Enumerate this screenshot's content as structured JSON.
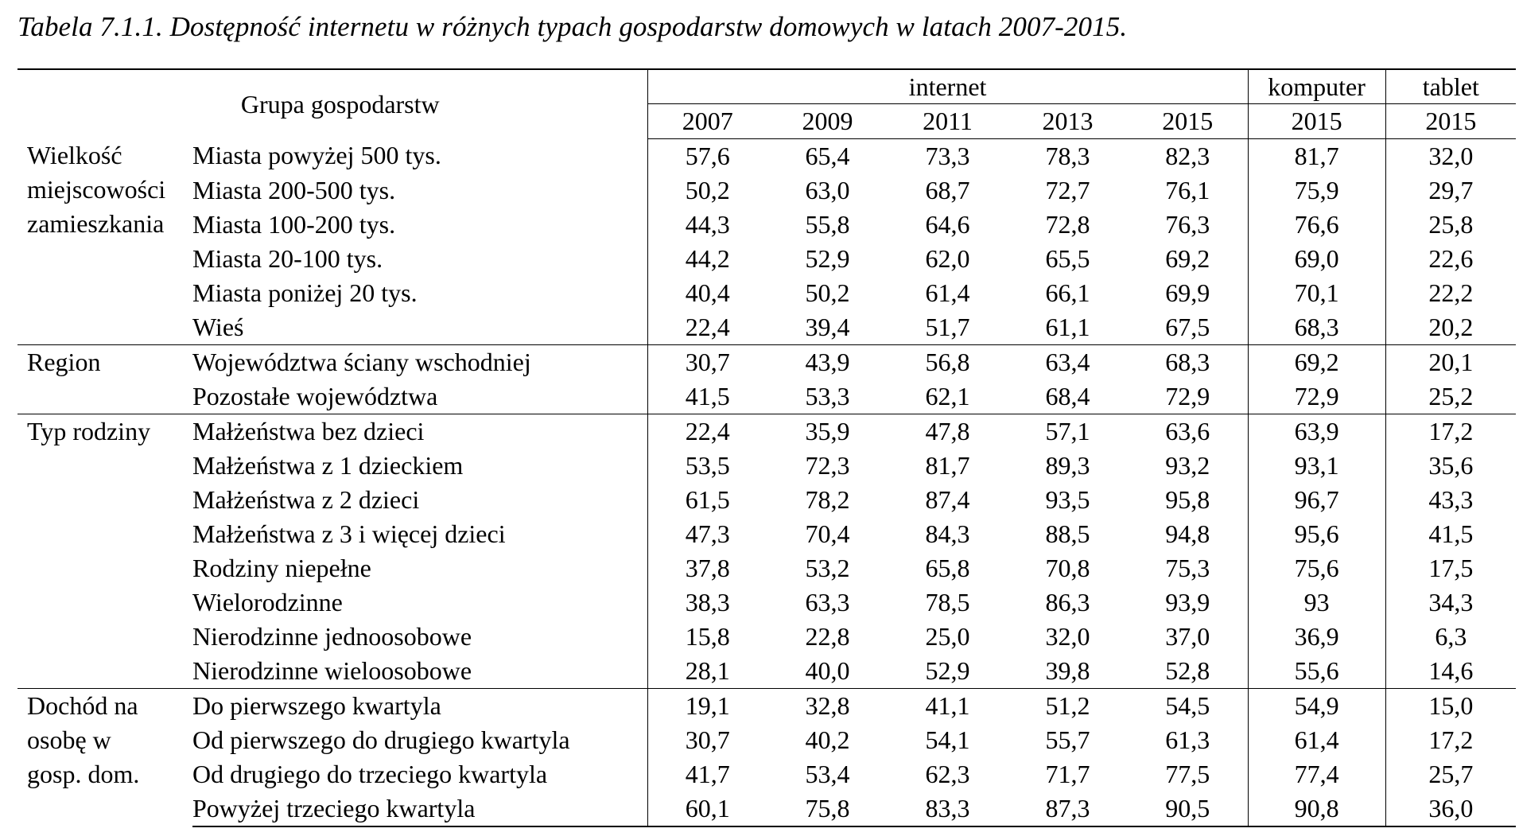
{
  "caption": "Tabela 7.1.1. Dostępność internetu w różnych typach gospodarstw domowych w latach 2007-2015.",
  "header": {
    "group_label": "Grupa gospodarstw",
    "internet_label": "internet",
    "komputer_label": "komputer",
    "tablet_label": "tablet",
    "years": [
      "2007",
      "2009",
      "2011",
      "2013",
      "2015",
      "2015",
      "2015"
    ]
  },
  "groups": [
    {
      "label_lines": [
        "Wielkość",
        "miejscowości",
        "zamieszkania"
      ],
      "rows": [
        {
          "label": "Miasta powyżej 500 tys.",
          "values": [
            "57,6",
            "65,4",
            "73,3",
            "78,3",
            "82,3",
            "81,7",
            "32,0"
          ]
        },
        {
          "label": "Miasta 200-500 tys.",
          "values": [
            "50,2",
            "63,0",
            "68,7",
            "72,7",
            "76,1",
            "75,9",
            "29,7"
          ]
        },
        {
          "label": "Miasta 100-200 tys.",
          "values": [
            "44,3",
            "55,8",
            "64,6",
            "72,8",
            "76,3",
            "76,6",
            "25,8"
          ]
        },
        {
          "label": "Miasta 20-100 tys.",
          "values": [
            "44,2",
            "52,9",
            "62,0",
            "65,5",
            "69,2",
            "69,0",
            "22,6"
          ]
        },
        {
          "label": "Miasta poniżej 20 tys.",
          "values": [
            "40,4",
            "50,2",
            "61,4",
            "66,1",
            "69,9",
            "70,1",
            "22,2"
          ]
        },
        {
          "label": "Wieś",
          "values": [
            "22,4",
            "39,4",
            "51,7",
            "61,1",
            "67,5",
            "68,3",
            "20,2"
          ]
        }
      ]
    },
    {
      "label_lines": [
        "Region"
      ],
      "rows": [
        {
          "label": "Województwa ściany wschodniej",
          "values": [
            "30,7",
            "43,9",
            "56,8",
            "63,4",
            "68,3",
            "69,2",
            "20,1"
          ]
        },
        {
          "label": "Pozostałe województwa",
          "values": [
            "41,5",
            "53,3",
            "62,1",
            "68,4",
            "72,9",
            "72,9",
            "25,2"
          ]
        }
      ]
    },
    {
      "label_lines": [
        "Typ rodziny"
      ],
      "rows": [
        {
          "label": "Małżeństwa bez dzieci",
          "values": [
            "22,4",
            "35,9",
            "47,8",
            "57,1",
            "63,6",
            "63,9",
            "17,2"
          ]
        },
        {
          "label": "Małżeństwa z 1 dzieckiem",
          "values": [
            "53,5",
            "72,3",
            "81,7",
            "89,3",
            "93,2",
            "93,1",
            "35,6"
          ]
        },
        {
          "label": "Małżeństwa z 2 dzieci",
          "values": [
            "61,5",
            "78,2",
            "87,4",
            "93,5",
            "95,8",
            "96,7",
            "43,3"
          ]
        },
        {
          "label": "Małżeństwa z 3 i więcej dzieci",
          "values": [
            "47,3",
            "70,4",
            "84,3",
            "88,5",
            "94,8",
            "95,6",
            "41,5"
          ]
        },
        {
          "label": "Rodziny niepełne",
          "values": [
            "37,8",
            "53,2",
            "65,8",
            "70,8",
            "75,3",
            "75,6",
            "17,5"
          ]
        },
        {
          "label": "Wielorodzinne",
          "values": [
            "38,3",
            "63,3",
            "78,5",
            "86,3",
            "93,9",
            "93",
            "34,3"
          ]
        },
        {
          "label": "Nierodzinne jednoosobowe",
          "values": [
            "15,8",
            "22,8",
            "25,0",
            "32,0",
            "37,0",
            "36,9",
            "6,3"
          ]
        },
        {
          "label": "Nierodzinne wieloosobowe",
          "values": [
            "28,1",
            "40,0",
            "52,9",
            "39,8",
            "52,8",
            "55,6",
            "14,6"
          ]
        }
      ]
    },
    {
      "label_lines": [
        "Dochód na",
        "osobę w",
        "gosp. dom."
      ],
      "rows": [
        {
          "label": "Do pierwszego kwartyla",
          "values": [
            "19,1",
            "32,8",
            "41,1",
            "51,2",
            "54,5",
            "54,9",
            "15,0"
          ]
        },
        {
          "label": "Od pierwszego do drugiego kwartyla",
          "values": [
            "30,7",
            "40,2",
            "54,1",
            "55,7",
            "61,3",
            "61,4",
            "17,2"
          ]
        },
        {
          "label": "Od drugiego do trzeciego kwartyla",
          "values": [
            "41,7",
            "53,4",
            "62,3",
            "71,7",
            "77,5",
            "77,4",
            "25,7"
          ]
        },
        {
          "label": "Powyżej trzeciego kwartyla",
          "values": [
            "60,1",
            "75,8",
            "83,3",
            "87,3",
            "90,5",
            "90,8",
            "36,0"
          ]
        }
      ]
    }
  ]
}
